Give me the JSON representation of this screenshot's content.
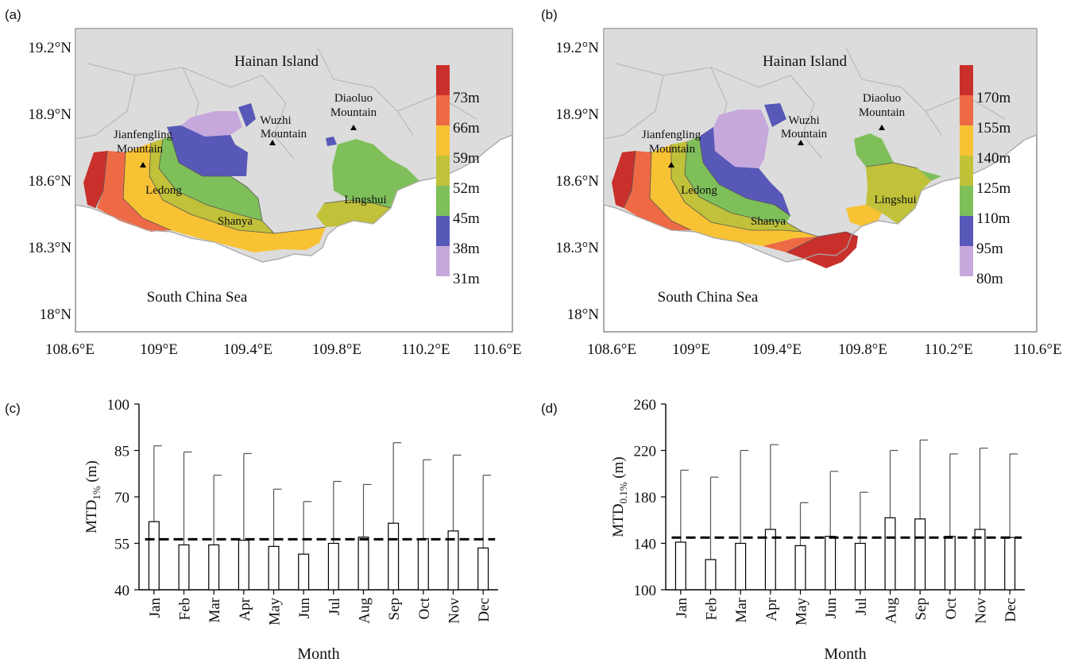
{
  "panels": {
    "a": {
      "letter": "(a)",
      "island_label": "Hainan Island",
      "sea_label": "South China Sea",
      "places": [
        "Diaoluo",
        "Mountain",
        "Wuzhi",
        "Mountain",
        "Jianfengling",
        "Mountain",
        "Ledong",
        "Shanya",
        "Lingshui"
      ],
      "lat_ticks": [
        "19.2°N",
        "18.9°N",
        "18.6°N",
        "18.3°N",
        "18°N"
      ],
      "lon_ticks": [
        "108.6°E",
        "109°E",
        "109.4°E",
        "109.8°E",
        "110.2°E",
        "110.6°E"
      ],
      "legend_labels": [
        "73m",
        "66m",
        "59m",
        "52m",
        "45m",
        "38m",
        "31m"
      ]
    },
    "b": {
      "letter": "(b)",
      "island_label": "Hainan Island",
      "sea_label": "South China Sea",
      "places": [
        "Diaoluo",
        "Mountain",
        "Wuzhi",
        "Mountain",
        "Jianfengling",
        "Mountain",
        "Ledong",
        "Shanya",
        "Lingshui"
      ],
      "lat_ticks": [
        "19.2°N",
        "18.9°N",
        "18.6°N",
        "18.3°N",
        "18°N"
      ],
      "lon_ticks": [
        "108.6°E",
        "109°E",
        "109.4°E",
        "109.8°E",
        "110.2°E",
        "110.6°E"
      ],
      "legend_labels": [
        "170m",
        "155m",
        "140m",
        "125m",
        "110m",
        "95m",
        "80m"
      ]
    }
  },
  "colors": {
    "land": "#dcdcdc",
    "land_border": "#a8a8a8",
    "legend": [
      "#c9302c",
      "#ee6a45",
      "#f7c234",
      "#c1c13a",
      "#7fbf5a",
      "#5858b8",
      "#c6a8dc"
    ],
    "bar_fill": "#ffffff",
    "bar_stroke": "#000000",
    "mean_line": "#000000"
  },
  "chart_data": [
    {
      "panel": "(c)",
      "type": "bar",
      "ylabel": "MTD",
      "ylabel_sub": "1%",
      "ylabel_unit": " (m)",
      "xlabel": "Month",
      "categories": [
        "Jan",
        "Feb",
        "Mar",
        "Apr",
        "May",
        "Jun",
        "Jul",
        "Aug",
        "Sep",
        "Oct",
        "Nov",
        "Dec"
      ],
      "values": [
        62,
        54.5,
        54.5,
        56,
        54,
        51.5,
        55,
        57,
        61.5,
        56.5,
        59,
        53.5
      ],
      "error_upper": [
        86.5,
        84.5,
        77,
        84,
        72.5,
        68.5,
        75,
        74,
        87.5,
        82,
        83.5,
        77
      ],
      "mean": 56.3,
      "ylim": [
        40,
        100
      ],
      "yticks": [
        40,
        55,
        70,
        85,
        100
      ]
    },
    {
      "panel": "(d)",
      "type": "bar",
      "ylabel": "MTD",
      "ylabel_sub": "0.1%",
      "ylabel_unit": " (m)",
      "xlabel": "Month",
      "categories": [
        "Jan",
        "Feb",
        "Mar",
        "Apr",
        "May",
        "Jun",
        "Jul",
        "Aug",
        "Sep",
        "Oct",
        "Nov",
        "Dec"
      ],
      "values": [
        141,
        126,
        140,
        152,
        138,
        146,
        140,
        162,
        161,
        146,
        152,
        145
      ],
      "error_upper": [
        203,
        197,
        220,
        225,
        175,
        202,
        184,
        220,
        229,
        217,
        222,
        217
      ],
      "mean": 145,
      "ylim": [
        100,
        260
      ],
      "yticks": [
        100,
        140,
        180,
        220,
        260
      ]
    }
  ]
}
